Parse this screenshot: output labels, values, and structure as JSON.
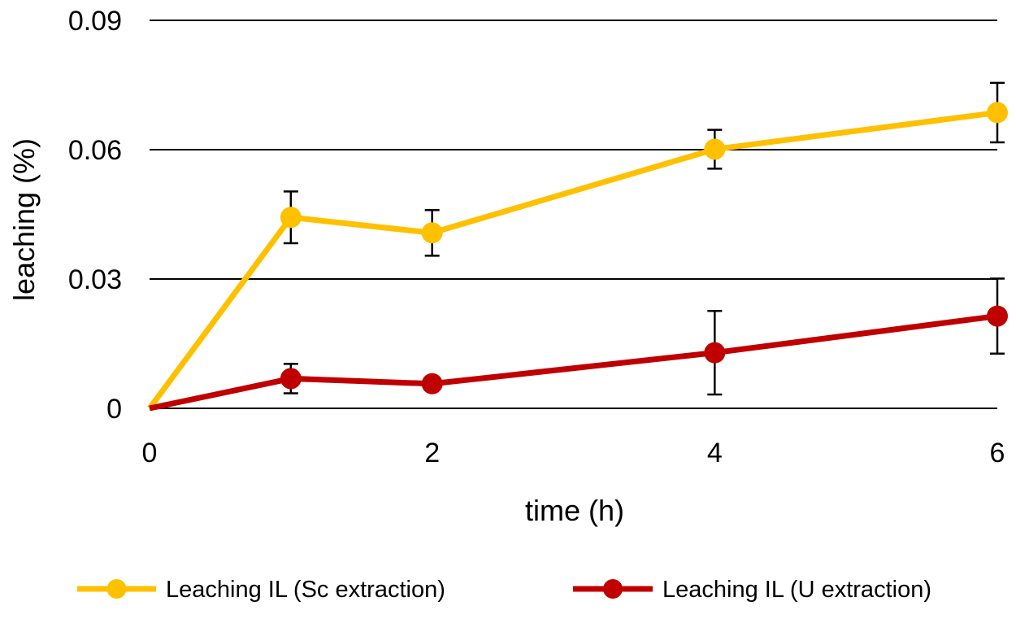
{
  "chart_data": {
    "type": "line",
    "title": "",
    "xlabel": "time (h)",
    "ylabel": "leaching (%)",
    "xlim": [
      0,
      6
    ],
    "ylim": [
      0,
      0.09
    ],
    "xticks": [
      0,
      2,
      4,
      6
    ],
    "xtick_labels": [
      "0",
      "2",
      "4",
      "6"
    ],
    "yticks": [
      0,
      0.03,
      0.06,
      0.09
    ],
    "ytick_labels": [
      "0",
      "0.03",
      "0.06",
      "0.09"
    ],
    "grid": "horizontal",
    "legend_position": "bottom",
    "series": [
      {
        "name": "Leaching IL (Sc extraction)",
        "color": "#FFC000",
        "x": [
          0,
          1,
          2,
          4,
          6
        ],
        "y": [
          0,
          0.0443,
          0.0407,
          0.0601,
          0.0686
        ],
        "error": [
          0,
          0.006,
          0.0053,
          0.0045,
          0.0069
        ]
      },
      {
        "name": "Leaching IL (U extraction)",
        "color": "#C00000",
        "x": [
          0,
          1,
          2,
          4,
          6
        ],
        "y": [
          0,
          0.0069,
          0.0057,
          0.0129,
          0.0214
        ],
        "error": [
          0,
          0.0034,
          0,
          0.0097,
          0.0087
        ]
      }
    ]
  }
}
